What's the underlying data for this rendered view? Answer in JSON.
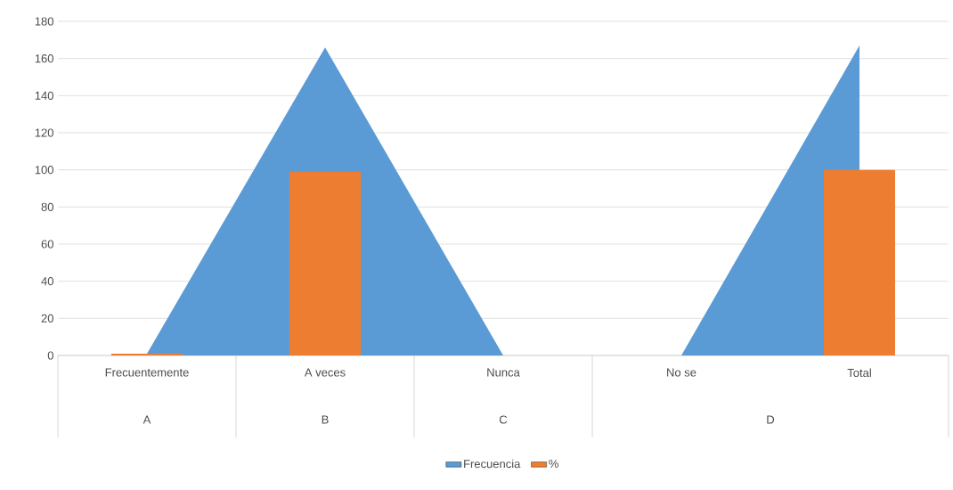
{
  "chart_data": {
    "type": "bar",
    "categories": [
      "Frecuentemente",
      "A veces",
      "Nunca",
      "No se",
      "Total"
    ],
    "series": [
      {
        "name": "Frecuencia",
        "type": "area",
        "color": "#5b9bd5",
        "values": [
          1,
          166,
          0,
          0,
          167
        ]
      },
      {
        "name": "%",
        "color": "#ed7d31",
        "values": [
          1,
          99,
          0,
          0,
          100
        ]
      }
    ],
    "ylim": [
      0,
      180
    ],
    "yticks": [
      0,
      20,
      40,
      60,
      80,
      100,
      120,
      140,
      160,
      180
    ],
    "grid": "y",
    "legend": "bottom",
    "annotations": [
      "A",
      "B",
      "C",
      "D"
    ]
  }
}
